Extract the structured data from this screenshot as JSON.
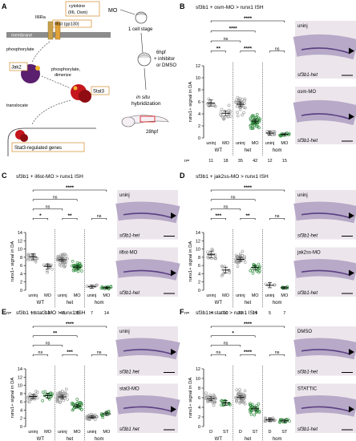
{
  "panelA": {
    "letter": "A",
    "cytokine": "cytokine",
    "cytokine_detail": "(Il6, Osm)",
    "il6ra": "Il6Ra",
    "il6st": "Il6st (gp130)",
    "membrane": "membrane",
    "phosphorylate": "phosphorylate",
    "jak2": "Jak2",
    "phos_dimerize": "phosphorylate,",
    "dimerize": "dimerize",
    "stat3": "Stat3",
    "translocate": "translocate",
    "genes": "Stat3-regulated genes",
    "mo": "MO",
    "one_cell": "1 cell stage",
    "hpf6": "6hpf",
    "inhibitor": "+ inhibitor",
    "or_dmso": "or DMSO",
    "insitu1": "in situ",
    "insitu2": "hybridization",
    "hpf28": "28hpf"
  },
  "common": {
    "ylabel": "runx1+ signal in DA",
    "n_label": "n=",
    "stats_sig4": "****",
    "stats_sig3": "***",
    "stats_sig2": "**",
    "stats_sig1": "*",
    "stats_ns": "ns"
  },
  "panels": [
    {
      "key": "B",
      "letter": "B",
      "title_a": "sf3b1 + osm-MO > runx1 ISH",
      "cats": [
        "uninj",
        "MO",
        "uninj",
        "MO",
        "uninj",
        "MO"
      ],
      "groups": [
        "WT",
        "het",
        "hom"
      ],
      "n": [
        "11",
        "18",
        "35",
        "42",
        "12",
        "15"
      ],
      "img_labels": [
        "uninj",
        "sf3b1-het",
        "osm-MO",
        "sf3b1-het"
      ]
    },
    {
      "key": "C",
      "letter": "C",
      "title_a": "sf3b1 + il6st-MO > runx1 ISH",
      "cats": [
        "uninj",
        "MO",
        "uninj",
        "MO",
        "uninj",
        "MO"
      ],
      "groups": [
        "WT",
        "het",
        "hom"
      ],
      "n": [
        "18",
        "12",
        "48",
        "35",
        "7",
        "14"
      ],
      "img_labels": [
        "uninj",
        "sf3b1-het",
        "il6st-MO",
        "sf3b1-het"
      ]
    },
    {
      "key": "D",
      "letter": "D",
      "title_a": "sf3b1 + jak2ss-MO > runx1 ISH",
      "cats": [
        "uninj",
        "MO",
        "uninj",
        "MO",
        "uninj",
        "MO"
      ],
      "groups": [
        "WT",
        "het",
        "hom"
      ],
      "n": [
        "14",
        "10",
        "37",
        "19",
        "5",
        "7"
      ],
      "img_labels": [
        "uninj",
        "sf3b1-het",
        "jak2ss-MO",
        "sf3b1-het"
      ]
    },
    {
      "key": "E",
      "letter": "E",
      "title_a": "sf3b1 + stat3-MO > runx1 ISH",
      "cats": [
        "uninj",
        "MO",
        "uninj",
        "MO",
        "uninj",
        "MO"
      ],
      "groups": [
        "WT",
        "het",
        "hom"
      ],
      "n": [
        "24",
        "15",
        "46",
        "31",
        "28",
        "12"
      ],
      "img_labels": [
        "uninj",
        "sf3b1 het",
        "stat3-MO",
        "sf3b1 het"
      ]
    },
    {
      "key": "F",
      "letter": "F",
      "title_a": "sf3b1 + stattic > runx1 ISH",
      "cats": [
        "D",
        "ST",
        "D",
        "ST",
        "D",
        "ST"
      ],
      "groups": [
        "WT",
        "het",
        "hom"
      ],
      "n": [
        "28",
        "15",
        "57",
        "31",
        "24",
        "15"
      ],
      "img_labels": [
        "DMSO",
        "sf3b1-het",
        "STATTIC",
        "sf3b1-het"
      ]
    }
  ],
  "chart_data": [
    {
      "panel": "B",
      "type": "scatter",
      "categories": [
        "WT uninj",
        "WT MO",
        "het uninj",
        "het MO",
        "hom uninj",
        "hom MO"
      ],
      "ylabel": "runx1+ signal in DA",
      "ylim": [
        0,
        12
      ],
      "yticks": [
        0,
        2,
        4,
        6,
        8,
        10,
        12
      ],
      "means": [
        5.8,
        4.1,
        5.6,
        2.8,
        0.8,
        0.6
      ],
      "sems": [
        0.5,
        0.4,
        0.4,
        0.3,
        0.3,
        0.2
      ],
      "spreads": [
        1.6,
        1.8,
        2.2,
        1.6,
        0.6,
        0.4
      ],
      "colors": [
        "#9a9a9a",
        "#9a9a9a",
        "#9a9a9a",
        "#2f8a3c",
        "#9a9a9a",
        "#2f8a3c"
      ],
      "comparisons": [
        [
          "WT uninj",
          "hom MO",
          "****"
        ],
        [
          "WT uninj",
          "het MO",
          "****"
        ],
        [
          "WT uninj",
          "het uninj",
          "ns"
        ],
        [
          "WT uninj",
          "WT MO",
          "**"
        ],
        [
          "het uninj",
          "het MO",
          "****"
        ],
        [
          "hom uninj",
          "hom MO",
          "ns"
        ]
      ]
    },
    {
      "panel": "C",
      "type": "scatter",
      "categories": [
        "WT uninj",
        "WT MO",
        "het uninj",
        "het MO",
        "hom uninj",
        "hom MO"
      ],
      "ylabel": "runx1+ signal in DA",
      "ylim": [
        0,
        14
      ],
      "yticks": [
        0,
        2,
        4,
        6,
        8,
        10,
        12,
        14
      ],
      "means": [
        8.1,
        5.8,
        7.4,
        5.6,
        0.9,
        0.6
      ],
      "sems": [
        0.7,
        0.6,
        0.4,
        0.4,
        0.4,
        0.2
      ],
      "spreads": [
        2.4,
        2.0,
        2.4,
        1.8,
        0.8,
        0.5
      ],
      "colors": [
        "#9a9a9a",
        "#9a9a9a",
        "#9a9a9a",
        "#2f8a3c",
        "#9a9a9a",
        "#2f8a3c"
      ],
      "comparisons": [
        [
          "WT uninj",
          "hom MO",
          "****"
        ],
        [
          "WT uninj",
          "het MO",
          "ns"
        ],
        [
          "WT uninj",
          "het uninj",
          "ns"
        ],
        [
          "WT uninj",
          "WT MO",
          "*"
        ],
        [
          "het uninj",
          "het MO",
          "**"
        ],
        [
          "hom uninj",
          "hom MO",
          "ns"
        ]
      ]
    },
    {
      "panel": "D",
      "type": "scatter",
      "categories": [
        "WT uninj",
        "WT MO",
        "het uninj",
        "het MO",
        "hom uninj",
        "hom MO"
      ],
      "ylabel": "runx1+ signal in DA",
      "ylim": [
        0,
        14
      ],
      "yticks": [
        0,
        2,
        4,
        6,
        8,
        10,
        12,
        14
      ],
      "means": [
        8.7,
        4.9,
        7.5,
        5.5,
        1.2,
        0.6
      ],
      "sems": [
        0.8,
        0.7,
        0.5,
        0.5,
        0.6,
        0.3
      ],
      "spreads": [
        2.2,
        2.0,
        2.2,
        1.9,
        1.0,
        0.5
      ],
      "colors": [
        "#9a9a9a",
        "#9a9a9a",
        "#9a9a9a",
        "#2f8a3c",
        "#9a9a9a",
        "#2f8a3c"
      ],
      "comparisons": [
        [
          "WT uninj",
          "hom MO",
          "****"
        ],
        [
          "WT uninj",
          "het MO",
          "ns"
        ],
        [
          "WT uninj",
          "het uninj",
          "ns"
        ],
        [
          "WT uninj",
          "WT MO",
          "***"
        ],
        [
          "het uninj",
          "het MO",
          "**"
        ],
        [
          "hom uninj",
          "hom MO",
          "ns"
        ]
      ]
    },
    {
      "panel": "E",
      "type": "scatter",
      "categories": [
        "WT uninj",
        "WT MO",
        "het uninj",
        "het MO",
        "hom uninj",
        "hom MO"
      ],
      "ylabel": "runx1+ signal in DA",
      "ylim": [
        0,
        14
      ],
      "yticks": [
        0,
        2,
        4,
        6,
        8,
        10,
        12,
        14
      ],
      "means": [
        7.3,
        7.5,
        7.2,
        5.0,
        2.3,
        3.1
      ],
      "sems": [
        0.5,
        0.6,
        0.4,
        0.4,
        0.3,
        0.4
      ],
      "spreads": [
        2.0,
        2.0,
        2.4,
        1.8,
        1.0,
        1.0
      ],
      "colors": [
        "#9a9a9a",
        "#2f8a3c",
        "#9a9a9a",
        "#2f8a3c",
        "#9a9a9a",
        "#2f8a3c"
      ],
      "comparisons": [
        [
          "WT uninj",
          "hom MO",
          "****"
        ],
        [
          "WT uninj",
          "het MO",
          "**"
        ],
        [
          "WT uninj",
          "het uninj",
          "ns"
        ],
        [
          "het uninj",
          "het MO",
          "***"
        ],
        [
          "WT uninj",
          "WT MO",
          "ns"
        ],
        [
          "hom uninj",
          "hom MO",
          "ns"
        ]
      ]
    },
    {
      "panel": "F",
      "type": "scatter",
      "categories": [
        "WT D",
        "WT ST",
        "het D",
        "het ST",
        "hom D",
        "hom ST"
      ],
      "ylabel": "runx1+ signal in DA",
      "ylim": [
        0,
        12
      ],
      "yticks": [
        0,
        2,
        4,
        6,
        8,
        10,
        12
      ],
      "means": [
        5.8,
        4.9,
        6.1,
        3.7,
        1.4,
        1.2
      ],
      "sems": [
        0.4,
        0.5,
        0.3,
        0.4,
        0.3,
        0.3
      ],
      "spreads": [
        1.6,
        1.4,
        2.0,
        1.6,
        0.7,
        0.6
      ],
      "colors": [
        "#9a9a9a",
        "#2f8a3c",
        "#9a9a9a",
        "#2f8a3c",
        "#9a9a9a",
        "#2f8a3c"
      ],
      "comparisons": [
        [
          "WT D",
          "hom ST",
          "****"
        ],
        [
          "WT D",
          "het ST",
          "*"
        ],
        [
          "WT D",
          "het D",
          "ns"
        ],
        [
          "WT D",
          "WT ST",
          "ns"
        ],
        [
          "het D",
          "het ST",
          "****"
        ],
        [
          "hom D",
          "hom ST",
          "ns"
        ]
      ]
    }
  ]
}
